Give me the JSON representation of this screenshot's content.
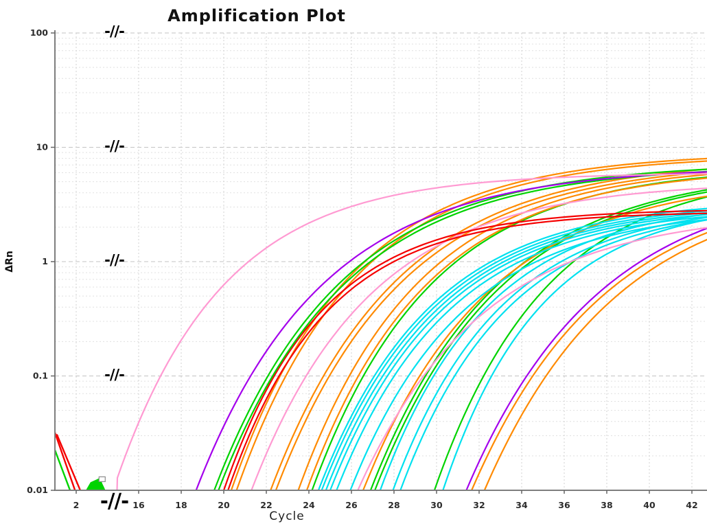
{
  "chart_data": {
    "type": "line",
    "title": "Amplification Plot",
    "xlabel": "Cycle",
    "ylabel": "ΔRn",
    "x_axis": {
      "min_cycle": 1,
      "max_cycle_visible": 43,
      "ticks": [
        2,
        16,
        18,
        20,
        22,
        24,
        26,
        28,
        30,
        32,
        34,
        36,
        38,
        40,
        42
      ],
      "break": {
        "from_cycle": 3,
        "to_cycle": 15,
        "marker_glyph": "-//-",
        "marker_on_gridlines_dRn": [
          100,
          10,
          1,
          0.1
        ],
        "marker_on_axis": true
      }
    },
    "y_axis": {
      "scale": "log10",
      "min": 0.01,
      "max": 100,
      "tick_labels": [
        "100",
        "10",
        "1",
        "0.1",
        "0.01"
      ],
      "tick_values": [
        100,
        10,
        1,
        0.1,
        0.01
      ]
    },
    "grid": {
      "style": "dashed",
      "major_color": "#c3c3c3",
      "minor_color": "#e0e0e0",
      "vertical_color": "#d2d2d2"
    },
    "axis_color": "#7e7e7e",
    "colors": {
      "pink": "#FF9AD2",
      "purple": "#A400EC",
      "green": "#00D300",
      "red": "#F50000",
      "orange": "#FF8A00",
      "cyan": "#00E1EF"
    },
    "curve_model": {
      "type": "gompertz",
      "formula": "dRn(c) = plateau * exp( -ln(100*plateau) * exp( -k * (c - ct) ) )",
      "note": "ct = cycle at which the curve crosses dRn 0.01 (bottom of plot); plateau = approx dRn reached at right edge (cycle ~43)"
    },
    "series": [
      {
        "name": "pink-1",
        "color": "pink",
        "ct": 14.8,
        "k": 0.2,
        "plateau": 6.0
      },
      {
        "name": "purple-1",
        "color": "purple",
        "ct": 18.7,
        "k": 0.17,
        "plateau": 6.8
      },
      {
        "name": "green-1",
        "color": "green",
        "ct": 19.55,
        "k": 0.17,
        "plateau": 7.3
      },
      {
        "name": "green-2",
        "color": "green",
        "ct": 19.75,
        "k": 0.17,
        "plateau": 7.0
      },
      {
        "name": "red-1",
        "color": "red",
        "ct": 20.0,
        "k": 0.22,
        "plateau": 2.9
      },
      {
        "name": "red-2",
        "color": "red",
        "ct": 20.2,
        "k": 0.22,
        "plateau": 2.75
      },
      {
        "name": "orange-1",
        "color": "orange",
        "ct": 20.35,
        "k": 0.18,
        "plateau": 9.0
      },
      {
        "name": "orange-2",
        "color": "orange",
        "ct": 20.6,
        "k": 0.18,
        "plateau": 8.6
      },
      {
        "name": "pink-2",
        "color": "pink",
        "ct": 21.3,
        "k": 0.18,
        "plateau": 5.0
      },
      {
        "name": "orange-3",
        "color": "orange",
        "ct": 22.2,
        "k": 0.17,
        "plateau": 7.9
      },
      {
        "name": "orange-4",
        "color": "orange",
        "ct": 22.45,
        "k": 0.17,
        "plateau": 7.5
      },
      {
        "name": "orange-5",
        "color": "orange",
        "ct": 23.5,
        "k": 0.18,
        "plateau": 7.1
      },
      {
        "name": "orange-6",
        "color": "orange",
        "ct": 23.9,
        "k": 0.18,
        "plateau": 6.7
      },
      {
        "name": "green-3",
        "color": "green",
        "ct": 24.15,
        "k": 0.18,
        "plateau": 6.9
      },
      {
        "name": "cyan-1",
        "color": "cyan",
        "ct": 24.45,
        "k": 0.19,
        "plateau": 3.5
      },
      {
        "name": "cyan-2",
        "color": "cyan",
        "ct": 24.6,
        "k": 0.19,
        "plateau": 3.35
      },
      {
        "name": "cyan-3",
        "color": "cyan",
        "ct": 24.8,
        "k": 0.19,
        "plateau": 3.25
      },
      {
        "name": "cyan-4",
        "color": "cyan",
        "ct": 25.0,
        "k": 0.19,
        "plateau": 3.15
      },
      {
        "name": "cyan-5",
        "color": "cyan",
        "ct": 25.3,
        "k": 0.19,
        "plateau": 3.05
      },
      {
        "name": "cyan-6",
        "color": "cyan",
        "ct": 25.95,
        "k": 0.19,
        "plateau": 2.95
      },
      {
        "name": "pink-3",
        "color": "pink",
        "ct": 26.3,
        "k": 0.17,
        "plateau": 2.8
      },
      {
        "name": "orange-7",
        "color": "orange",
        "ct": 26.55,
        "k": 0.17,
        "plateau": 5.6
      },
      {
        "name": "green-4",
        "color": "green",
        "ct": 26.9,
        "k": 0.17,
        "plateau": 6.6
      },
      {
        "name": "green-5",
        "color": "green",
        "ct": 27.1,
        "k": 0.17,
        "plateau": 6.4
      },
      {
        "name": "cyan-7",
        "color": "cyan",
        "ct": 27.35,
        "k": 0.2,
        "plateau": 3.4
      },
      {
        "name": "cyan-8",
        "color": "cyan",
        "ct": 27.95,
        "k": 0.2,
        "plateau": 3.3
      },
      {
        "name": "cyan-9",
        "color": "cyan",
        "ct": 28.3,
        "k": 0.2,
        "plateau": 3.2
      },
      {
        "name": "green-6",
        "color": "green",
        "ct": 29.9,
        "k": 0.19,
        "plateau": 6.5
      },
      {
        "name": "cyan-10",
        "color": "cyan",
        "ct": 30.3,
        "k": 0.22,
        "plateau": 3.4
      },
      {
        "name": "purple-2",
        "color": "purple",
        "ct": 31.4,
        "k": 0.16,
        "plateau": 5.5
      },
      {
        "name": "orange-8",
        "color": "orange",
        "ct": 31.65,
        "k": 0.16,
        "plateau": 5.2
      },
      {
        "name": "orange-9",
        "color": "orange",
        "ct": 32.25,
        "k": 0.16,
        "plateau": 5.0
      }
    ],
    "baseline_artifacts": {
      "spikes": [
        {
          "name": "red-spike-1",
          "color": "red",
          "points": [
            [
              1.0,
              0.032
            ],
            [
              1.95,
              0.0099
            ]
          ]
        },
        {
          "name": "red-spike-2",
          "color": "red",
          "points": [
            [
              1.1,
              0.0305
            ],
            [
              2.2,
              0.0099
            ]
          ]
        },
        {
          "name": "green-spike",
          "color": "green",
          "points": [
            [
              1.0,
              0.0225
            ],
            [
              1.72,
              0.0099
            ]
          ]
        }
      ],
      "scribble": {
        "name": "green-baseline-blob",
        "color": "green",
        "points": [
          [
            2.5,
            0.01
          ],
          [
            2.7,
            0.0116
          ],
          [
            3.0,
            0.0123
          ],
          [
            3.9,
            0.0125
          ],
          [
            4.8,
            0.0121
          ],
          [
            5.4,
            0.0114
          ],
          [
            6.2,
            0.0108
          ],
          [
            7.2,
            0.01
          ]
        ]
      },
      "marker_square": {
        "cycle": 5.6,
        "value": 0.0125,
        "fill": "#ffffff",
        "border": "#8a8a8a"
      }
    }
  }
}
